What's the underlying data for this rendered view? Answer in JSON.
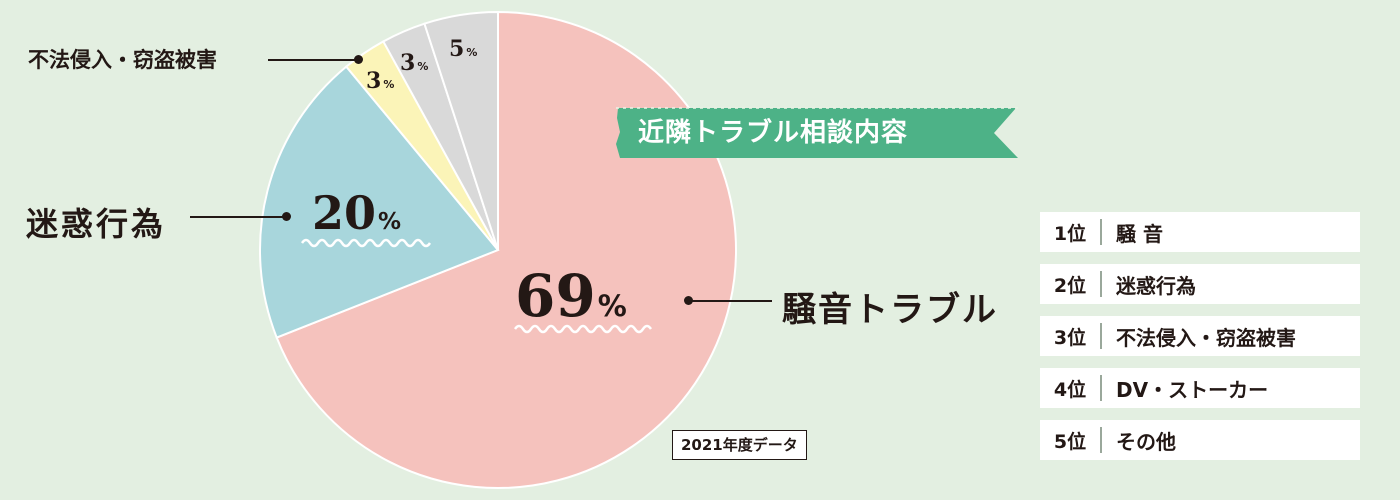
{
  "chart_data": {
    "type": "pie",
    "title": "近隣トラブル相談内容",
    "note": "2021年度データ",
    "slices": [
      {
        "label": "騒音トラブル",
        "value": 69,
        "display": "69",
        "unit": "%",
        "color": "#f5c2bd"
      },
      {
        "label": "迷惑行為",
        "value": 20,
        "display": "20",
        "unit": "%",
        "color": "#a8d6dc"
      },
      {
        "label": "不法侵入・窃盗被害",
        "value": 3,
        "display": "3",
        "unit": "%",
        "color": "#fbf4b8"
      },
      {
        "label": "",
        "value": 3,
        "display": "3",
        "unit": "%",
        "color": "#d9d9d9"
      },
      {
        "label": "",
        "value": 5,
        "display": "5",
        "unit": "%",
        "color": "#d9d9d9"
      }
    ]
  },
  "ranking": [
    {
      "rank": "1位",
      "label": "騒 音"
    },
    {
      "rank": "2位",
      "label": "迷惑行為"
    },
    {
      "rank": "3位",
      "label": "不法侵入・窃盗被害"
    },
    {
      "rank": "4位",
      "label": "DV・ストーカー"
    },
    {
      "rank": "5位",
      "label": "その他"
    }
  ],
  "colors": {
    "background": "#e3efe1",
    "banner": "#4db287",
    "text": "#231815"
  }
}
